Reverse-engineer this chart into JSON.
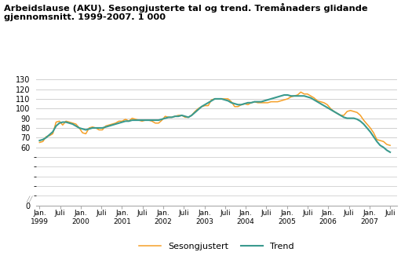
{
  "title": "Arbeidslause (AKU). Sesongjusterte tal og trend. Tremånaders glidande\ngjennomsnitt. 1999-2007. 1 000",
  "ylim": [
    0,
    130
  ],
  "yticks": [
    0,
    60,
    70,
    80,
    90,
    100,
    110,
    120,
    130
  ],
  "bg_color": "#ffffff",
  "grid_color": "#d0d0d0",
  "sesongjustert_color": "#f5a028",
  "trend_color": "#3a9a8e",
  "legend_sesongjustert": "Sesongjustert",
  "legend_trend": "Trend",
  "sesongjustert": [
    65,
    66,
    71,
    72,
    74,
    86,
    87,
    83,
    87,
    86,
    85,
    84,
    80,
    75,
    74,
    80,
    81,
    80,
    78,
    78,
    82,
    83,
    84,
    85,
    87,
    87,
    89,
    87,
    90,
    89,
    88,
    87,
    88,
    88,
    87,
    85,
    85,
    88,
    92,
    91,
    91,
    92,
    93,
    93,
    91,
    91,
    93,
    97,
    100,
    102,
    103,
    103,
    109,
    110,
    110,
    110,
    110,
    110,
    107,
    102,
    102,
    104,
    105,
    104,
    106,
    107,
    106,
    106,
    106,
    106,
    107,
    107,
    107,
    108,
    109,
    110,
    112,
    113,
    114,
    117,
    115,
    115,
    113,
    111,
    108,
    107,
    106,
    104,
    100,
    97,
    95,
    93,
    93,
    97,
    98,
    97,
    96,
    93,
    88,
    84,
    80,
    75,
    68,
    67,
    66,
    63,
    62
  ],
  "trend": [
    67,
    68,
    70,
    73,
    76,
    82,
    85,
    86,
    86,
    85,
    84,
    82,
    80,
    79,
    78,
    79,
    80,
    80,
    80,
    80,
    81,
    82,
    83,
    84,
    85,
    86,
    87,
    87,
    88,
    88,
    88,
    88,
    88,
    88,
    88,
    88,
    88,
    89,
    90,
    91,
    91,
    92,
    92,
    93,
    92,
    91,
    93,
    96,
    99,
    102,
    104,
    106,
    108,
    110,
    110,
    110,
    109,
    108,
    106,
    105,
    104,
    104,
    105,
    106,
    106,
    107,
    107,
    107,
    108,
    109,
    110,
    111,
    112,
    113,
    114,
    114,
    113,
    113,
    113,
    113,
    113,
    112,
    111,
    109,
    107,
    105,
    103,
    101,
    99,
    97,
    95,
    93,
    91,
    90,
    90,
    90,
    89,
    87,
    84,
    80,
    76,
    71,
    66,
    62,
    60,
    57,
    55
  ]
}
